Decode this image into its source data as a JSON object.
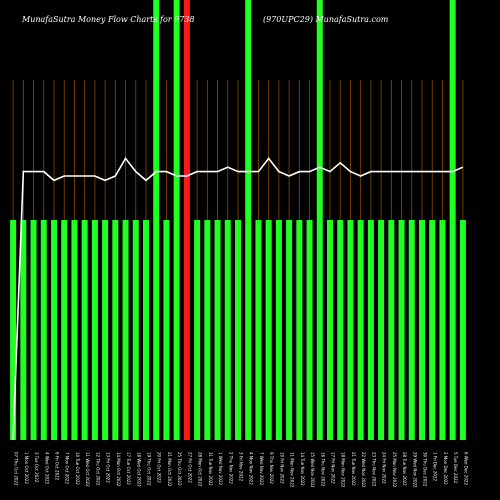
{
  "chart_data": {
    "type": "bar",
    "title_left": "MunafaSutra  Money Flow  Charts for 9738",
    "title_right": "(970UPC29) MunafaSutra.com",
    "ylim": [
      0,
      100
    ],
    "grid": "vertical",
    "categories": [
      "07 Thu Oct 2022",
      "1 Mon Oct 2022",
      "3 Tue Oct 2022",
      "4 Wed Oct 2022",
      "6 Fri Oct 2022",
      "7 Mon Oct 2022",
      "10 Tue Oct 2022",
      "11 Wed Oct 2022",
      "12 Thu Oct 2022",
      "13 Fri Oct 2022",
      "14 Mon Oct 2022",
      "17 Tue Oct 2022",
      "18 Wed Oct 2022",
      "19 Thu Oct 2022",
      "20 Fri Oct 2022",
      "21 Mon Oct 2022",
      "25 Thu Oct 2022",
      "27 Fri Oct 2022",
      "28 Mon Oct 2022",
      "31 Tue Nov 2022",
      "1 Wed Nov 2022",
      "2 Thu Nov 2022",
      "3 Fri Nov 2022",
      "4 Mon Nov 2022",
      "7 Wed Nov 2022",
      "9 Thu Nov 2022",
      "10 Fri Nov 2022",
      "11 Mon Nov 2022",
      "14 Tue Nov 2022",
      "15 Wed Nov 2022",
      "16 Thu Nov 2022",
      "17 Fri Nov 2022",
      "18 Mon Nov 2022",
      "21 Tue Nov 2022",
      "22 Wed Nov 2022",
      "23 Thu Nov 2022",
      "24 Fri Nov 2022",
      "25 Mon Nov 2022",
      "28 Tue Nov 2022",
      "29 Wed Nov 2022",
      "30 Thu Dec 2022",
      "1 Fri Dec 2022",
      "2 Mon Dec 2022",
      "5 Tue Dec 2022",
      "6 Wed Dec 2022"
    ],
    "series": [
      {
        "type": "bar",
        "values": [
          50,
          50,
          50,
          50,
          50,
          50,
          50,
          50,
          50,
          50,
          50,
          50,
          50,
          50,
          100,
          50,
          100,
          100,
          50,
          50,
          50,
          50,
          50,
          100,
          50,
          50,
          50,
          50,
          50,
          50,
          100,
          50,
          50,
          50,
          50,
          50,
          50,
          50,
          50,
          50,
          50,
          50,
          50,
          100,
          50
        ],
        "colors": [
          "green",
          "green",
          "green",
          "green",
          "green",
          "green",
          "green",
          "green",
          "green",
          "green",
          "green",
          "green",
          "green",
          "green",
          "green",
          "green",
          "green",
          "red",
          "green",
          "green",
          "green",
          "green",
          "green",
          "green",
          "green",
          "green",
          "green",
          "green",
          "green",
          "green",
          "green",
          "green",
          "green",
          "green",
          "green",
          "green",
          "green",
          "green",
          "green",
          "green",
          "green",
          "green",
          "green",
          "green",
          "green"
        ]
      },
      {
        "type": "line",
        "values": [
          0,
          61,
          61,
          61,
          59,
          60,
          60,
          60,
          60,
          59,
          60,
          64,
          61,
          59,
          61,
          61,
          60,
          60,
          61,
          61,
          61,
          62,
          61,
          61,
          61,
          64,
          61,
          60,
          61,
          61,
          62,
          61,
          63,
          61,
          60,
          61,
          61,
          61,
          61,
          61,
          61,
          61,
          61,
          61,
          62
        ]
      }
    ],
    "colors": {
      "green": "#22ff22",
      "red": "#ff1a1a",
      "line": "#ffffff",
      "grid": "#8a4a00",
      "background": "#000000"
    }
  }
}
